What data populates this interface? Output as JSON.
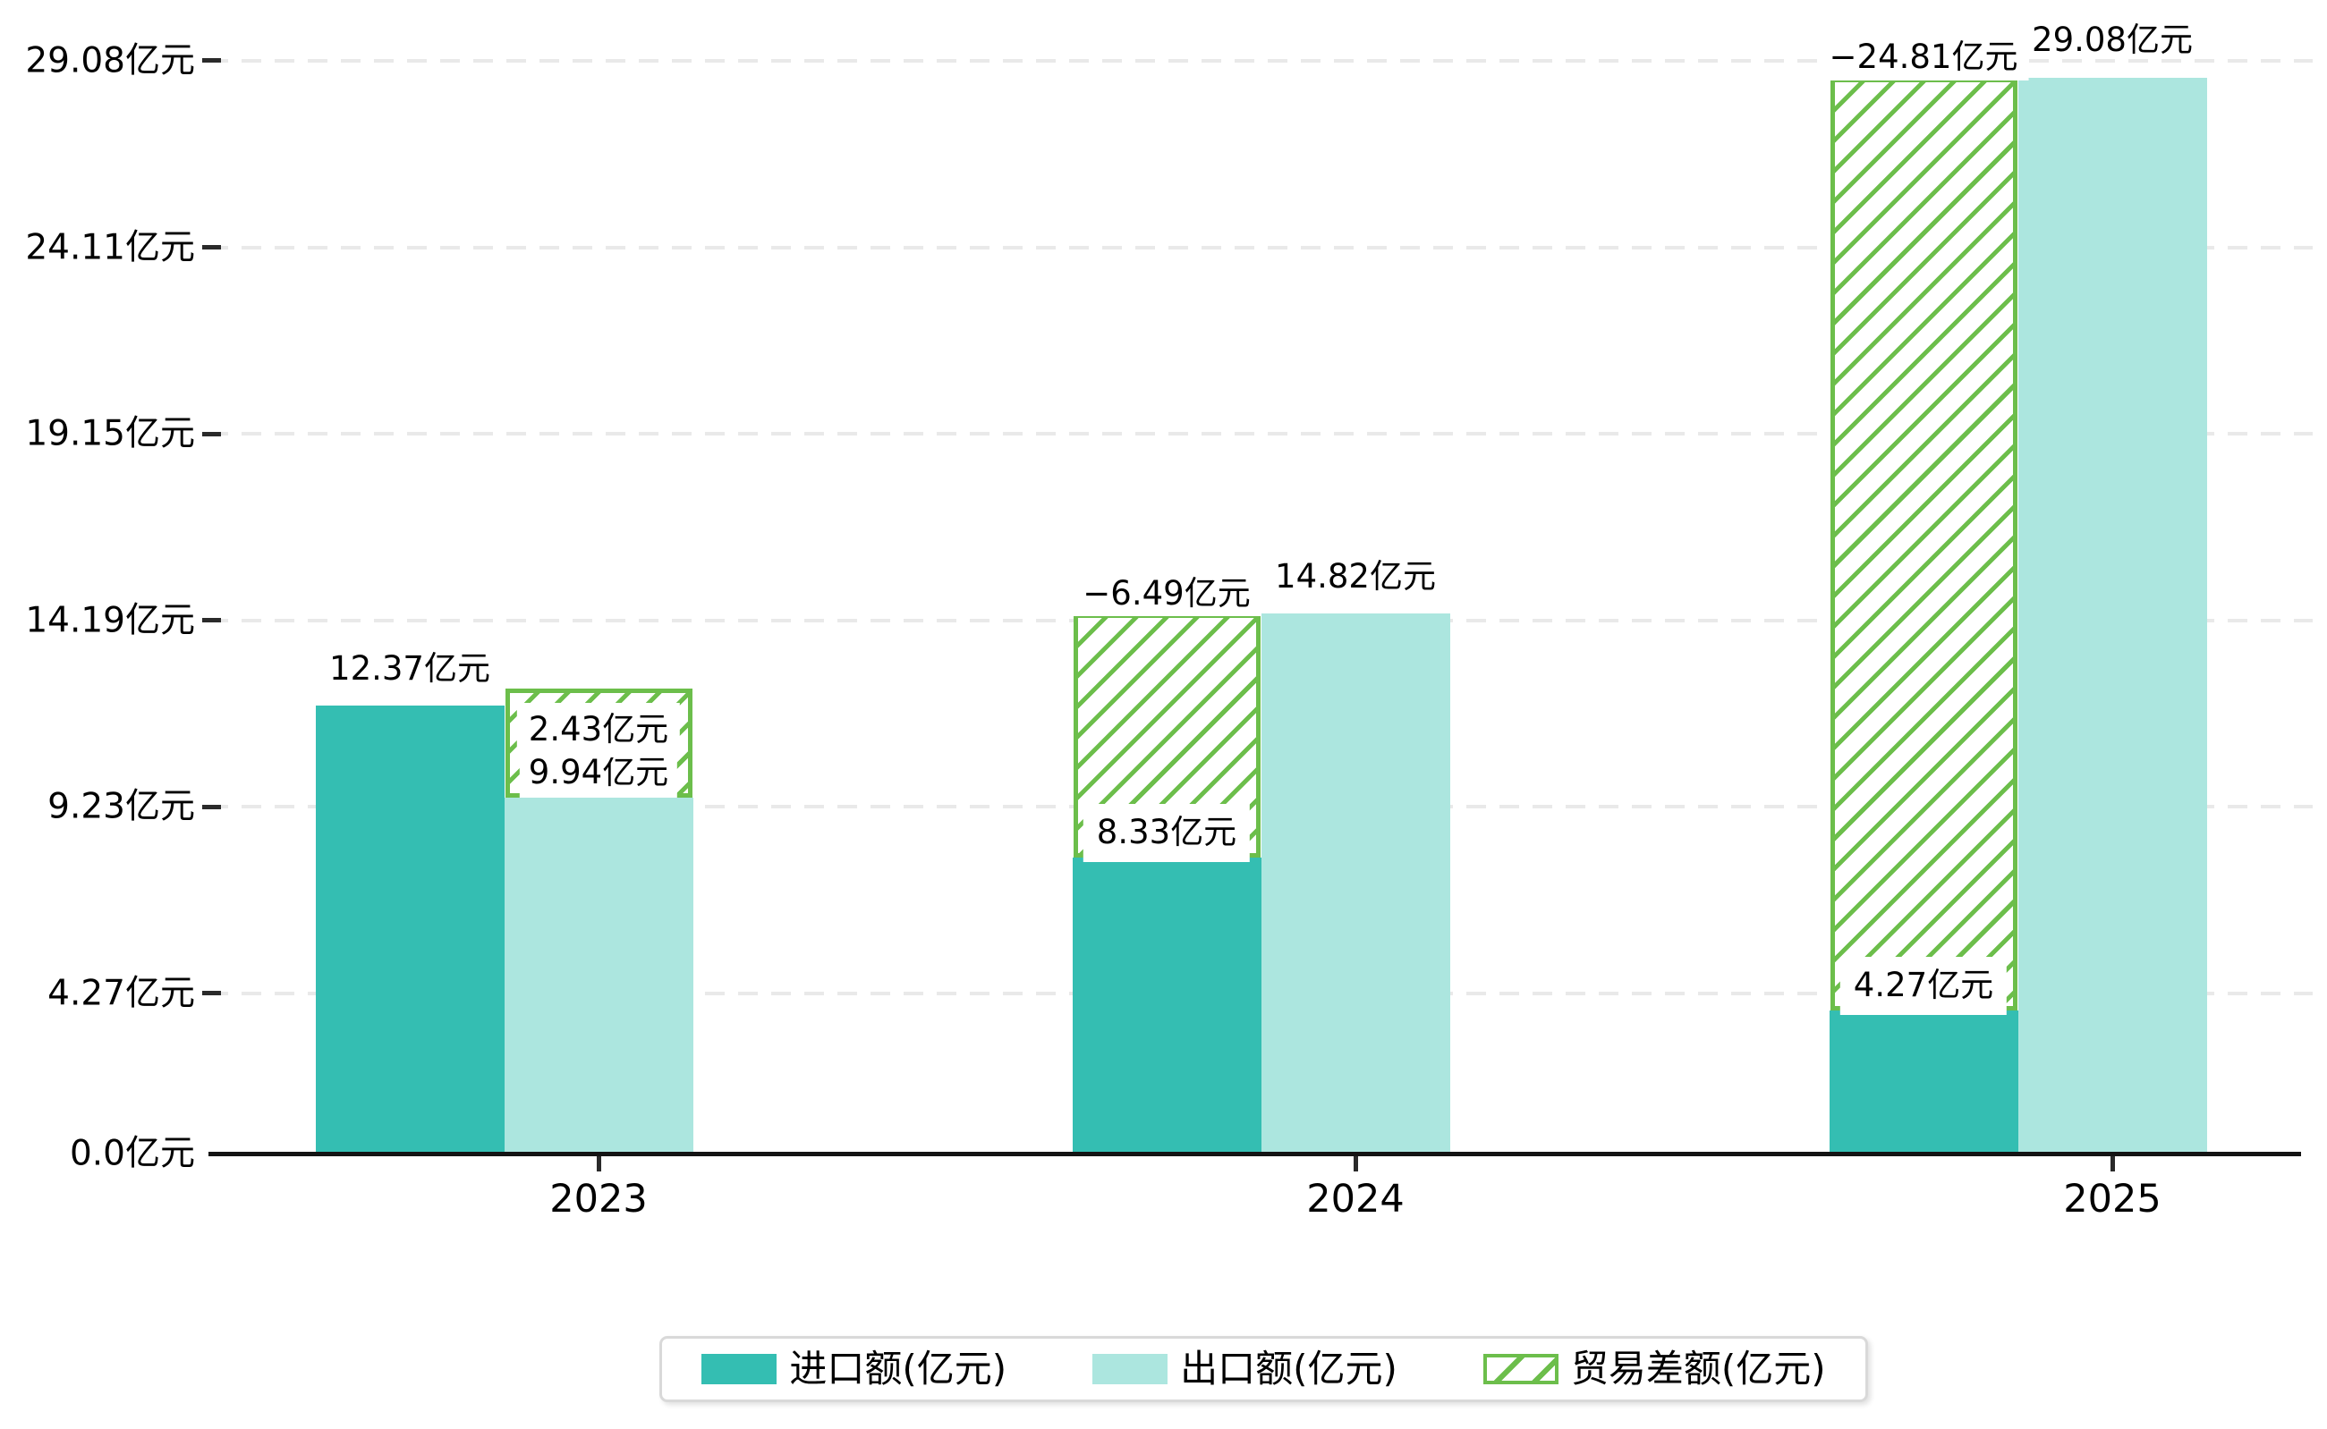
{
  "chart_data": {
    "type": "bar",
    "title": "",
    "unit": "亿元",
    "categories": [
      "2023",
      "2024",
      "2025"
    ],
    "series": [
      {
        "name": "进口额(亿元)",
        "role": "import",
        "color": "#34beb2",
        "values": [
          12.37,
          8.33,
          4.27
        ],
        "labels": [
          "12.37亿元",
          "8.33亿元",
          "4.27亿元"
        ]
      },
      {
        "name": "出口额(亿元)",
        "role": "export",
        "color": "#ace6df",
        "values": [
          9.94,
          14.82,
          29.08
        ],
        "labels": [
          "9.94亿元",
          "14.82亿元",
          "29.08亿元"
        ]
      },
      {
        "name": "贸易差额(亿元)",
        "role": "diff",
        "style": "hatched",
        "color": "#6cbe4b",
        "values": [
          2.43,
          -6.49,
          -24.81
        ],
        "labels": [
          "2.43亿元",
          "−6.49亿元",
          "−24.81亿元"
        ]
      }
    ],
    "y_ticks": [
      {
        "value": 0,
        "label": "0.0亿元"
      },
      {
        "value": 4.27,
        "label": "4.27亿元"
      },
      {
        "value": 9.23,
        "label": "9.23亿元"
      },
      {
        "value": 14.19,
        "label": "14.19亿元"
      },
      {
        "value": 19.15,
        "label": "19.15亿元"
      },
      {
        "value": 24.11,
        "label": "24.11亿元"
      },
      {
        "value": 29.08,
        "label": "29.08亿元"
      }
    ],
    "grid": "dashed-horizontal",
    "legend_position": "bottom",
    "colors": {
      "import": "#34beb2",
      "export": "#ace6df",
      "diff_green": "#6cbe4b",
      "gridline": "#e9e9e9",
      "axis": "#141414",
      "text": "#000000",
      "label_bg": "#ffffff",
      "legend_border": "#d9d9d9"
    }
  }
}
